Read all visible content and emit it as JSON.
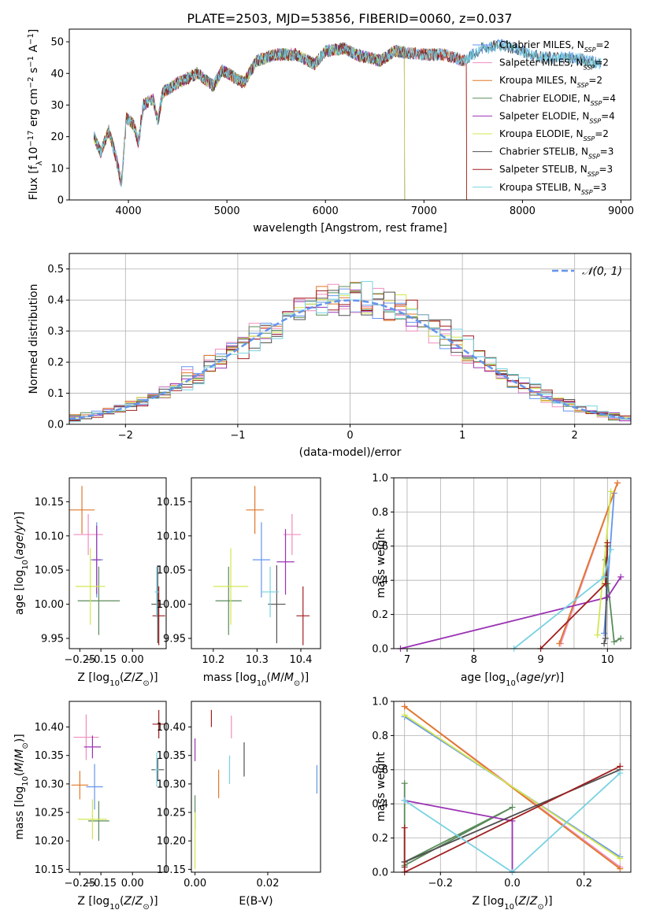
{
  "title": "PLATE=2503, MJD=53856, FIBERID=0060, z=0.037",
  "colors": {
    "Chabrier MILES": "#6495ed",
    "Salpeter MILES": "#f08cbe",
    "Kroupa MILES": "#e07828",
    "Chabrier ELODIE": "#5a8c5a",
    "Salpeter ELODIE": "#9b32b4",
    "Kroupa ELODIE": "#d2e650",
    "Chabrier STELIB": "#505050",
    "Salpeter STELIB": "#a01e1e",
    "Kroupa STELIB": "#78d2e1"
  },
  "chart_data": [
    {
      "id": "spectrum",
      "type": "line",
      "xlabel": "wavelength [Angstrom, rest frame]",
      "ylabel_parts": [
        "Flux [f",
        "λ",
        "10",
        "−17",
        " erg cm",
        "−2",
        " s",
        "−1",
        " A",
        "−1",
        "]"
      ],
      "xlim": [
        3400,
        9100
      ],
      "ylim": [
        0,
        54
      ],
      "xticks": [
        4000,
        5000,
        6000,
        7000,
        8000,
        9000
      ],
      "yticks": [
        0,
        10,
        20,
        30,
        40,
        50
      ],
      "spectrum_knots": [
        [
          3650,
          20
        ],
        [
          3720,
          15
        ],
        [
          3800,
          22
        ],
        [
          3870,
          14
        ],
        [
          3930,
          5
        ],
        [
          3980,
          26
        ],
        [
          4050,
          24
        ],
        [
          4102,
          18
        ],
        [
          4150,
          30
        ],
        [
          4250,
          32
        ],
        [
          4300,
          25
        ],
        [
          4350,
          34
        ],
        [
          4500,
          37
        ],
        [
          4700,
          40
        ],
        [
          4861,
          36
        ],
        [
          4950,
          41
        ],
        [
          5175,
          37
        ],
        [
          5300,
          44
        ],
        [
          5500,
          46
        ],
        [
          5700,
          46
        ],
        [
          5890,
          43
        ],
        [
          6000,
          47
        ],
        [
          6200,
          48
        ],
        [
          6300,
          46
        ],
        [
          6563,
          44
        ],
        [
          6700,
          47
        ],
        [
          7000,
          46
        ],
        [
          7200,
          46
        ],
        [
          7400,
          44
        ],
        [
          7600,
          48
        ],
        [
          7800,
          49
        ],
        [
          8000,
          47
        ],
        [
          8200,
          45
        ],
        [
          8500,
          45
        ],
        [
          8800,
          43
        ]
      ],
      "series": [
        {
          "name": "Chabrier MILES",
          "label_main": "Chabrier MILES, N",
          "label_sub": "SSP",
          "label_tail": "=2",
          "end": 8800
        },
        {
          "name": "Salpeter MILES",
          "label_main": "Salpeter MILES, N",
          "label_sub": "SSP",
          "label_tail": "=2",
          "end": 7430
        },
        {
          "name": "Kroupa MILES",
          "label_main": "Kroupa MILES, N",
          "label_sub": "SSP",
          "label_tail": "=2",
          "end": 7430
        },
        {
          "name": "Chabrier ELODIE",
          "label_main": "Chabrier ELODIE, N",
          "label_sub": "SSP",
          "label_tail": "=4",
          "end": 6800
        },
        {
          "name": "Salpeter ELODIE",
          "label_main": "Salpeter ELODIE, N",
          "label_sub": "SSP",
          "label_tail": "=4",
          "end": 6800
        },
        {
          "name": "Kroupa ELODIE",
          "label_main": "Kroupa ELODIE, N",
          "label_sub": "SSP",
          "label_tail": "=2",
          "end": 6800
        },
        {
          "name": "Chabrier STELIB",
          "label_main": "Chabrier STELIB, N",
          "label_sub": "SSP",
          "label_tail": "=3",
          "end": 8800
        },
        {
          "name": "Salpeter STELIB",
          "label_main": "Salpeter STELIB, N",
          "label_sub": "SSP",
          "label_tail": "=3",
          "end": 7430
        },
        {
          "name": "Kroupa STELIB",
          "label_main": "Kroupa STELIB, N",
          "label_sub": "SSP",
          "label_tail": "=3",
          "end": 8800
        }
      ]
    },
    {
      "id": "residuals",
      "type": "histogram",
      "xlabel": "(data-model)/error",
      "ylabel": "Normed distribution",
      "xlim": [
        -2.5,
        2.5
      ],
      "ylim": [
        0,
        0.55
      ],
      "xticks": [
        -2,
        -1,
        0,
        1,
        2
      ],
      "yticks": [
        0.0,
        0.1,
        0.2,
        0.3,
        0.4,
        0.5
      ],
      "grid": true,
      "bin_width": 0.1,
      "reference": {
        "name": "𝒩(0, 1)",
        "color": "#6495ed",
        "style": "dashed"
      },
      "legend_position": "top-right"
    },
    {
      "id": "age_vs_Z",
      "type": "errorbar",
      "xlabel": "Z [log10(Z/Z⊙)]",
      "ylabel": "age  [log10(age/yr)]",
      "xlim": [
        -0.3,
        0.16
      ],
      "ylim": [
        9.935,
        10.185
      ],
      "xticks": [
        -0.25,
        -0.15,
        0.0
      ],
      "yticks": [
        9.95,
        10.0,
        10.05,
        10.1,
        10.15
      ],
      "points": [
        {
          "name": "Chabrier MILES",
          "x": -0.17,
          "y": 10.065,
          "xerr": 0.03,
          "yerr": 0.055
        },
        {
          "name": "Salpeter MILES",
          "x": -0.21,
          "y": 10.102,
          "xerr": 0.07,
          "yerr": 0.03
        },
        {
          "name": "Kroupa MILES",
          "x": -0.24,
          "y": 10.138,
          "xerr": 0.06,
          "yerr": 0.035
        },
        {
          "name": "Chabrier ELODIE",
          "x": -0.16,
          "y": 10.005,
          "xerr": 0.1,
          "yerr": 0.05
        },
        {
          "name": "Salpeter ELODIE",
          "x": -0.17,
          "y": 10.065,
          "xerr": 0.02,
          "yerr": 0.05
        },
        {
          "name": "Kroupa ELODIE",
          "x": -0.2,
          "y": 10.026,
          "xerr": 0.07,
          "yerr": 0.056
        },
        {
          "name": "Chabrier STELIB",
          "x": 0.12,
          "y": 10.0,
          "xerr": 0.03,
          "yerr": 0.057
        },
        {
          "name": "Salpeter STELIB",
          "x": 0.125,
          "y": 9.983,
          "xerr": 0.03,
          "yerr": 0.043
        },
        {
          "name": "Kroupa STELIB",
          "x": 0.115,
          "y": 10.018,
          "xerr": 0.01,
          "yerr": 0.037
        }
      ]
    },
    {
      "id": "age_vs_mass",
      "type": "errorbar",
      "xlabel": "mass [log10(M/M⊙)]",
      "ylabel": "",
      "xlim": [
        10.15,
        10.445
      ],
      "ylim": [
        9.935,
        10.185
      ],
      "xticks": [
        10.2,
        10.3,
        10.4
      ],
      "yticks": [
        9.95,
        10.0,
        10.05,
        10.1,
        10.15
      ],
      "points": [
        {
          "name": "Chabrier MILES",
          "x": 10.31,
          "y": 10.065,
          "xerr": 0.02,
          "yerr": 0.055
        },
        {
          "name": "Salpeter MILES",
          "x": 10.38,
          "y": 10.102,
          "xerr": 0.02,
          "yerr": 0.03
        },
        {
          "name": "Kroupa MILES",
          "x": 10.295,
          "y": 10.138,
          "xerr": 0.02,
          "yerr": 0.035
        },
        {
          "name": "Chabrier ELODIE",
          "x": 10.235,
          "y": 10.005,
          "xerr": 0.03,
          "yerr": 0.05
        },
        {
          "name": "Salpeter ELODIE",
          "x": 10.365,
          "y": 10.062,
          "xerr": 0.02,
          "yerr": 0.048
        },
        {
          "name": "Kroupa ELODIE",
          "x": 10.24,
          "y": 10.026,
          "xerr": 0.04,
          "yerr": 0.056
        },
        {
          "name": "Chabrier STELIB",
          "x": 10.345,
          "y": 10.0,
          "xerr": 0.02,
          "yerr": 0.057
        },
        {
          "name": "Salpeter STELIB",
          "x": 10.405,
          "y": 9.983,
          "xerr": 0.015,
          "yerr": 0.043
        },
        {
          "name": "Kroupa STELIB",
          "x": 10.33,
          "y": 10.018,
          "xerr": 0.02,
          "yerr": 0.037
        }
      ]
    },
    {
      "id": "mass_weight_vs_age",
      "type": "line",
      "xlabel": "age  [log10(age/yr)]",
      "ylabel": "mass weight",
      "xlim": [
        6.8,
        10.35
      ],
      "ylim": [
        0,
        1.0
      ],
      "xticks": [
        7,
        8,
        9,
        10
      ],
      "yticks": [
        0.0,
        0.2,
        0.4,
        0.6,
        0.8,
        1.0
      ],
      "grid": true,
      "series": [
        {
          "name": "Chabrier MILES",
          "x": [
            10.1,
            9.95
          ],
          "y": [
            0.91,
            0.09
          ]
        },
        {
          "name": "Salpeter MILES",
          "x": [
            9.3,
            10.15
          ],
          "y": [
            0.03,
            0.97
          ]
        },
        {
          "name": "Kroupa MILES",
          "x": [
            9.28,
            10.15
          ],
          "y": [
            0.03,
            0.97
          ]
        },
        {
          "name": "Chabrier ELODIE",
          "x": [
            10.0,
            9.97,
            10.1,
            10.2
          ],
          "y": [
            0.38,
            0.52,
            0.04,
            0.06
          ]
        },
        {
          "name": "Salpeter ELODIE",
          "x": [
            6.9,
            10.0,
            10.2
          ],
          "y": [
            0.0,
            0.3,
            0.42
          ]
        },
        {
          "name": "Kroupa ELODIE",
          "x": [
            9.85,
            10.05
          ],
          "y": [
            0.08,
            0.92
          ]
        },
        {
          "name": "Chabrier STELIB",
          "x": [
            9.95,
            9.97,
            10.0
          ],
          "y": [
            0.03,
            0.06,
            0.6
          ]
        },
        {
          "name": "Salpeter STELIB",
          "x": [
            9.0,
            9.97,
            10.0
          ],
          "y": [
            0.0,
            0.38,
            0.62
          ]
        },
        {
          "name": "Kroupa STELIB",
          "x": [
            8.6,
            9.95,
            10.05
          ],
          "y": [
            0.0,
            0.42,
            0.58
          ]
        }
      ]
    },
    {
      "id": "mass_vs_Z",
      "type": "errorbar",
      "xlabel": "Z [log10(Z/Z⊙)]",
      "ylabel": "mass [log10(M/M⊙)]",
      "xlim": [
        -0.3,
        0.16
      ],
      "ylim": [
        10.145,
        10.445
      ],
      "xticks": [
        -0.25,
        -0.15,
        0.0
      ],
      "yticks": [
        10.15,
        10.2,
        10.25,
        10.3,
        10.35,
        10.4
      ],
      "points": [
        {
          "name": "Chabrier MILES",
          "x": -0.18,
          "y": 10.295,
          "xerr": 0.04,
          "yerr": 0.04
        },
        {
          "name": "Salpeter MILES",
          "x": -0.22,
          "y": 10.382,
          "xerr": 0.06,
          "yerr": 0.04
        },
        {
          "name": "Kroupa MILES",
          "x": -0.25,
          "y": 10.298,
          "xerr": 0.04,
          "yerr": 0.025
        },
        {
          "name": "Chabrier ELODIE",
          "x": -0.16,
          "y": 10.235,
          "xerr": 0.05,
          "yerr": 0.035
        },
        {
          "name": "Salpeter ELODIE",
          "x": -0.19,
          "y": 10.365,
          "xerr": 0.04,
          "yerr": 0.02
        },
        {
          "name": "Kroupa ELODIE",
          "x": -0.19,
          "y": 10.238,
          "xerr": 0.07,
          "yerr": 0.035
        },
        {
          "name": "Chabrier STELIB",
          "x": 0.12,
          "y": 10.325,
          "xerr": 0.03,
          "yerr": 0.02
        },
        {
          "name": "Salpeter STELIB",
          "x": 0.125,
          "y": 10.405,
          "xerr": 0.03,
          "yerr": 0.025
        },
        {
          "name": "Kroupa STELIB",
          "x": 0.115,
          "y": 10.325,
          "xerr": 0.01,
          "yerr": 0.03
        }
      ]
    },
    {
      "id": "mass_vs_ebv",
      "type": "errorbar",
      "xlabel": "E(B-V)",
      "ylabel": "",
      "xlim": [
        -0.001,
        0.0345
      ],
      "ylim": [
        10.145,
        10.445
      ],
      "xticks": [
        0.0,
        0.02
      ],
      "yticks": [
        10.15,
        10.2,
        10.25,
        10.3,
        10.35,
        10.4
      ],
      "points": [
        {
          "name": "Chabrier MILES",
          "x": 0.0335,
          "y": 10.308,
          "xerr": 0,
          "yerr": 0.025
        },
        {
          "name": "Salpeter MILES",
          "x": 0.01,
          "y": 10.4,
          "xerr": 0,
          "yerr": 0.02
        },
        {
          "name": "Kroupa MILES",
          "x": 0.0065,
          "y": 10.3,
          "xerr": 0,
          "yerr": 0.025
        },
        {
          "name": "Chabrier ELODIE",
          "x": 0.0,
          "y": 10.25,
          "xerr": 0,
          "yerr": 0.03
        },
        {
          "name": "Salpeter ELODIE",
          "x": 0.0,
          "y": 10.36,
          "xerr": 0,
          "yerr": 0.02
        },
        {
          "name": "Kroupa ELODIE",
          "x": 0.0,
          "y": 10.2,
          "xerr": 0,
          "yerr": 0.05
        },
        {
          "name": "Chabrier STELIB",
          "x": 0.0135,
          "y": 10.343,
          "xerr": 0,
          "yerr": 0.03
        },
        {
          "name": "Salpeter STELIB",
          "x": 0.0045,
          "y": 10.415,
          "xerr": 0,
          "yerr": 0.015
        },
        {
          "name": "Kroupa STELIB",
          "x": 0.0095,
          "y": 10.325,
          "xerr": 0,
          "yerr": 0.025
        }
      ]
    },
    {
      "id": "mass_weight_vs_Z",
      "type": "line",
      "xlabel": "Z [log10(Z/Z⊙)]",
      "ylabel": "mass weight",
      "xlim": [
        -0.33,
        0.33
      ],
      "ylim": [
        0,
        1.0
      ],
      "xticks": [
        -0.2,
        0.0,
        0.2
      ],
      "yticks": [
        0.0,
        0.2,
        0.4,
        0.6,
        0.8,
        1.0
      ],
      "grid": true,
      "series": [
        {
          "name": "Chabrier MILES",
          "x": [
            -0.3,
            0.3
          ],
          "y": [
            0.91,
            0.09
          ]
        },
        {
          "name": "Salpeter MILES",
          "x": [
            -0.3,
            0.3
          ],
          "y": [
            0.97,
            0.03
          ]
        },
        {
          "name": "Kroupa MILES",
          "x": [
            -0.3,
            0.3
          ],
          "y": [
            0.97,
            0.02
          ]
        },
        {
          "name": "Chabrier ELODIE",
          "x": [
            -0.3,
            -0.3,
            0.0,
            -0.3
          ],
          "y": [
            0.52,
            0.06,
            0.38,
            0.04
          ]
        },
        {
          "name": "Salpeter ELODIE",
          "x": [
            -0.3,
            0.0,
            0.0
          ],
          "y": [
            0.42,
            0.3,
            0.0
          ]
        },
        {
          "name": "Kroupa ELODIE",
          "x": [
            -0.3,
            0.3
          ],
          "y": [
            0.92,
            0.08
          ]
        },
        {
          "name": "Chabrier STELIB",
          "x": [
            -0.3,
            -0.3,
            0.3
          ],
          "y": [
            0.03,
            0.06,
            0.6
          ]
        },
        {
          "name": "Salpeter STELIB",
          "x": [
            -0.3,
            -0.3,
            0.3
          ],
          "y": [
            0.26,
            0.0,
            0.62
          ]
        },
        {
          "name": "Kroupa STELIB",
          "x": [
            -0.3,
            0.0,
            0.3
          ],
          "y": [
            0.42,
            0.0,
            0.58
          ]
        }
      ]
    }
  ]
}
